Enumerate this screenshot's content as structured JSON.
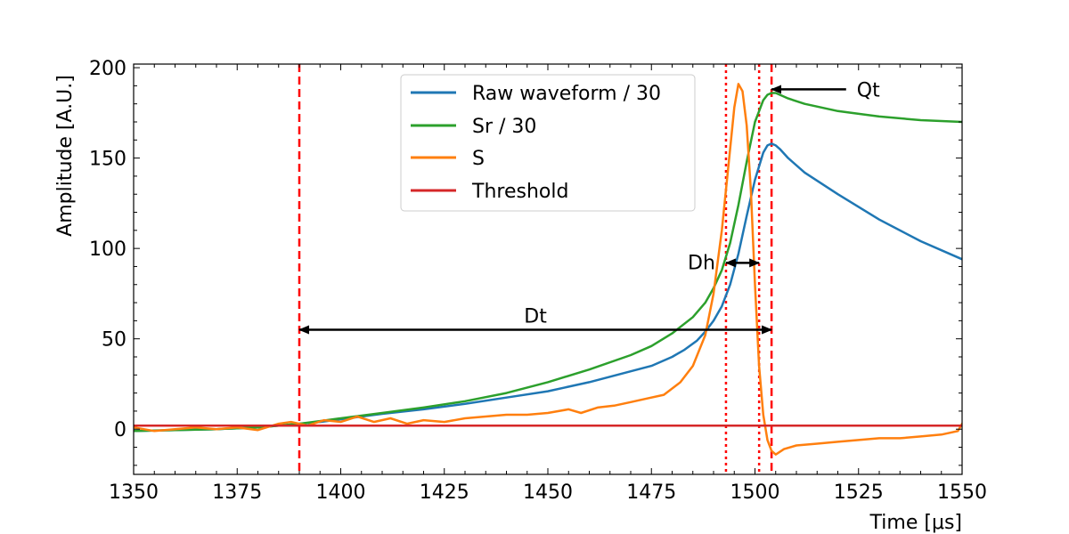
{
  "chart_data": {
    "type": "line",
    "xlabel": "Time [μs]",
    "ylabel": "Amplitude [A.U.]",
    "xlim": [
      1350,
      1550
    ],
    "ylim": [
      -25,
      202
    ],
    "xticks": [
      1350,
      1375,
      1400,
      1425,
      1450,
      1475,
      1500,
      1525,
      1550
    ],
    "yticks": [
      0,
      50,
      100,
      150,
      200
    ],
    "legend_position": "top-center",
    "colors": {
      "raw": "#1f77b4",
      "sr": "#2ca02c",
      "s": "#ff7f0e",
      "threshold": "#d62728",
      "marker": "#ff0000",
      "arrow": "#000000"
    },
    "series": [
      {
        "name": "Raw waveform / 30",
        "color": "#1f77b4",
        "x": [
          1350,
          1360,
          1370,
          1380,
          1385,
          1390,
          1395,
          1400,
          1405,
          1410,
          1420,
          1430,
          1440,
          1450,
          1460,
          1470,
          1475,
          1480,
          1483,
          1486,
          1488,
          1490,
          1492,
          1494,
          1496,
          1498,
          1500,
          1502,
          1503,
          1504,
          1505,
          1506,
          1508,
          1512,
          1520,
          1530,
          1540,
          1550
        ],
        "values": [
          -1,
          -0.5,
          0,
          1,
          2,
          3,
          4,
          5.5,
          7,
          8.5,
          11,
          14,
          17.5,
          21,
          26,
          32,
          35,
          40,
          44,
          49,
          54,
          60,
          68,
          80,
          97,
          118,
          138,
          153,
          157,
          158,
          157,
          155,
          150,
          142,
          130,
          116,
          104,
          94
        ]
      },
      {
        "name": "Sr / 30",
        "color": "#2ca02c",
        "x": [
          1350,
          1360,
          1370,
          1380,
          1385,
          1390,
          1395,
          1400,
          1405,
          1410,
          1420,
          1430,
          1440,
          1450,
          1460,
          1470,
          1475,
          1480,
          1485,
          1488,
          1490,
          1492,
          1494,
          1496,
          1498,
          1500,
          1502,
          1503,
          1504,
          1505,
          1506,
          1508,
          1512,
          1520,
          1530,
          1540,
          1550
        ],
        "values": [
          -1,
          -0.5,
          0,
          1,
          2,
          3,
          4.5,
          6,
          7.5,
          9,
          12,
          15.5,
          20,
          26,
          33,
          41,
          46,
          53,
          62,
          70,
          78,
          88,
          103,
          124,
          148,
          170,
          182,
          185,
          186,
          186,
          185,
          183,
          180,
          176,
          173,
          171,
          170
        ]
      },
      {
        "name": "S",
        "color": "#ff7f0e",
        "x": [
          1350,
          1355,
          1360,
          1365,
          1370,
          1375,
          1380,
          1385,
          1388,
          1392,
          1396,
          1400,
          1404,
          1408,
          1412,
          1416,
          1420,
          1425,
          1430,
          1435,
          1440,
          1445,
          1450,
          1455,
          1458,
          1462,
          1466,
          1470,
          1474,
          1478,
          1482,
          1485,
          1488,
          1490,
          1492,
          1494,
          1495,
          1496,
          1497,
          1498,
          1499,
          1500,
          1501,
          1502,
          1503,
          1504,
          1505,
          1507,
          1510,
          1515,
          1520,
          1525,
          1530,
          1535,
          1540,
          1545,
          1549,
          1550
        ],
        "values": [
          1,
          -1,
          0,
          1,
          0,
          1,
          -0.5,
          3,
          4,
          2,
          5,
          4,
          7,
          4,
          6,
          3,
          5,
          4,
          6,
          7,
          8,
          8,
          9,
          11,
          9,
          12,
          13,
          15,
          17,
          19,
          26,
          35,
          52,
          75,
          110,
          155,
          178,
          191,
          187,
          168,
          132,
          80,
          35,
          8,
          -6,
          -12,
          -14,
          -11,
          -9,
          -8,
          -7,
          -6,
          -5,
          -5,
          -4,
          -3,
          -1,
          3
        ]
      },
      {
        "name": "Threshold",
        "color": "#d62728",
        "x": [
          1350,
          1550
        ],
        "values": [
          2,
          2
        ]
      }
    ],
    "vertical_markers": [
      {
        "x": 1390,
        "style": "dashed"
      },
      {
        "x": 1504,
        "style": "dashed"
      },
      {
        "x": 1493,
        "style": "dotted"
      },
      {
        "x": 1501,
        "style": "dotted"
      }
    ],
    "annotations": [
      {
        "label": "Dt",
        "x_from": 1390,
        "x_to": 1504,
        "y": 55,
        "kind": "double-arrow"
      },
      {
        "label": "Dh",
        "x_from": 1493,
        "x_to": 1501,
        "y": 92,
        "kind": "double-arrow"
      },
      {
        "label": "Qt",
        "x_tail": 1522,
        "x_head": 1504,
        "y": 188,
        "kind": "arrow"
      }
    ]
  }
}
